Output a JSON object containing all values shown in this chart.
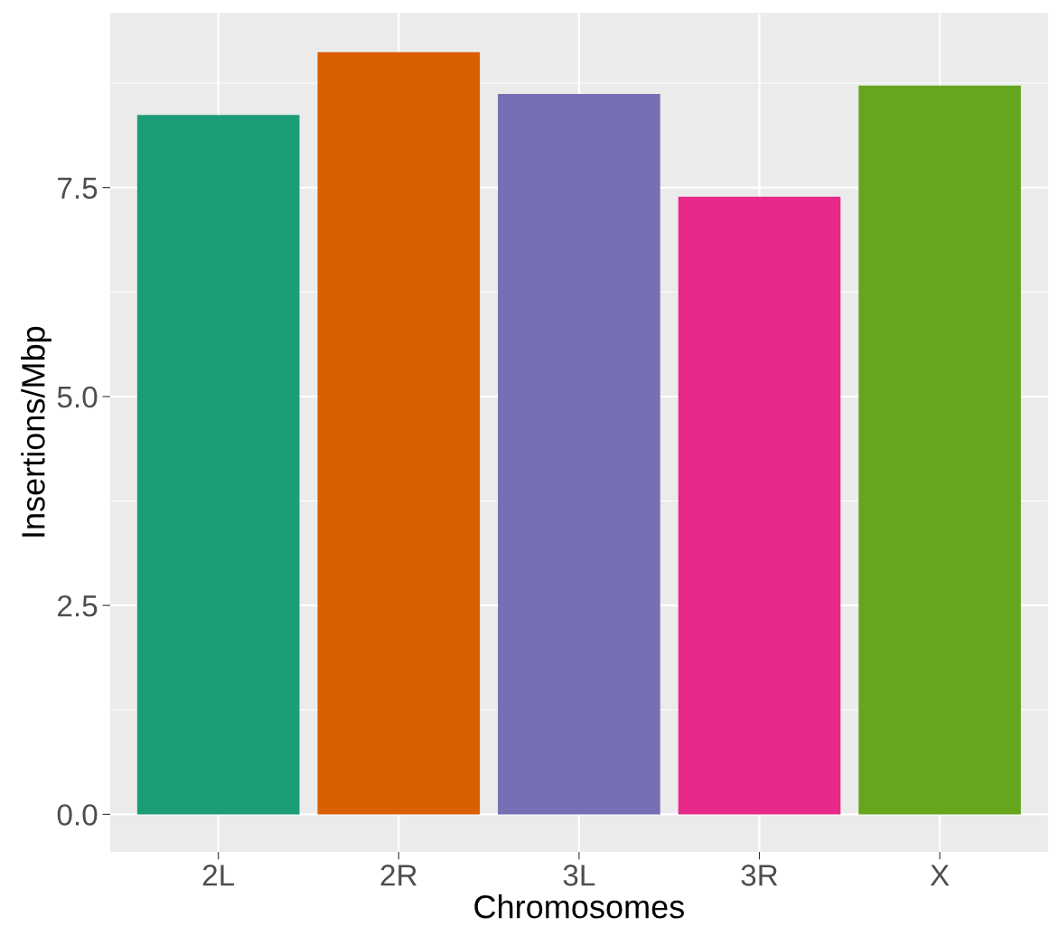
{
  "chart_data": {
    "type": "bar",
    "xlabel": "Chromosomes",
    "ylabel": "Insertions/Mbp",
    "categories": [
      "2L",
      "2R",
      "3L",
      "3R",
      "X"
    ],
    "values": [
      8.37,
      9.12,
      8.62,
      7.39,
      8.72
    ],
    "colors": [
      "#1b9e77",
      "#d95f02",
      "#7570b3",
      "#e7298a",
      "#66a61e"
    ],
    "ylim": [
      -0.45,
      9.59
    ],
    "yticks": [
      {
        "value": 0,
        "label": "0.0"
      },
      2.5,
      {
        "value": 5,
        "label": "5.0"
      },
      7.5
    ],
    "grid": true,
    "legend": false
  }
}
